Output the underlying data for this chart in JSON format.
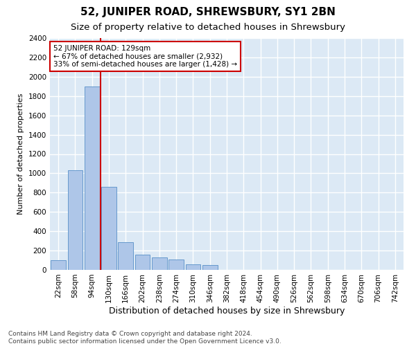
{
  "title": "52, JUNIPER ROAD, SHREWSBURY, SY1 2BN",
  "subtitle": "Size of property relative to detached houses in Shrewsbury",
  "xlabel": "Distribution of detached houses by size in Shrewsbury",
  "ylabel": "Number of detached properties",
  "categories": [
    "22sqm",
    "58sqm",
    "94sqm",
    "130sqm",
    "166sqm",
    "202sqm",
    "238sqm",
    "274sqm",
    "310sqm",
    "346sqm",
    "382sqm",
    "418sqm",
    "454sqm",
    "490sqm",
    "526sqm",
    "562sqm",
    "598sqm",
    "634sqm",
    "670sqm",
    "706sqm",
    "742sqm"
  ],
  "values": [
    100,
    1030,
    1900,
    860,
    290,
    160,
    130,
    110,
    60,
    50,
    0,
    0,
    0,
    0,
    0,
    0,
    0,
    0,
    0,
    0,
    0
  ],
  "bar_color": "#aec6e8",
  "bar_edge_color": "#6699cc",
  "vline_color": "#cc0000",
  "vline_pos": 2.5,
  "annotation_line1": "52 JUNIPER ROAD: 129sqm",
  "annotation_line2": "← 67% of detached houses are smaller (2,932)",
  "annotation_line3": "33% of semi-detached houses are larger (1,428) →",
  "annotation_box_color": "#ffffff",
  "annotation_box_edge_color": "#cc0000",
  "ylim": [
    0,
    2400
  ],
  "yticks": [
    0,
    200,
    400,
    600,
    800,
    1000,
    1200,
    1400,
    1600,
    1800,
    2000,
    2200,
    2400
  ],
  "footnote": "Contains HM Land Registry data © Crown copyright and database right 2024.\nContains public sector information licensed under the Open Government Licence v3.0.",
  "background_color": "#dce9f5",
  "grid_color": "#ffffff",
  "title_fontsize": 11,
  "subtitle_fontsize": 9.5,
  "xlabel_fontsize": 9,
  "ylabel_fontsize": 8,
  "tick_fontsize": 7.5,
  "annotation_fontsize": 7.5,
  "footnote_fontsize": 6.5
}
